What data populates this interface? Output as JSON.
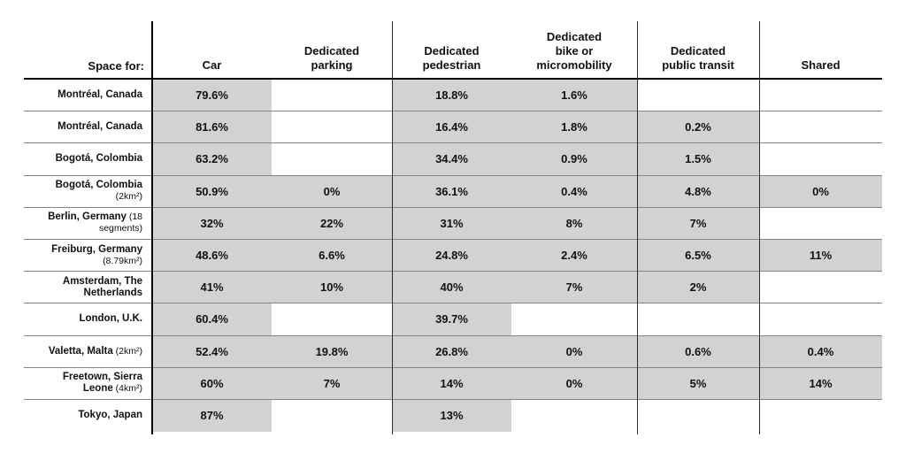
{
  "table": {
    "corner_label": "Space for:",
    "columns": [
      "Car",
      "Dedicated\nparking",
      "Dedicated\npedestrian",
      "Dedicated\nbike or\nmicromobility",
      "Dedicated\npublic transit",
      "Shared"
    ],
    "rows": [
      {
        "name": "Montréal, Canada",
        "note": "",
        "values": [
          "79.6%",
          "",
          "18.8%",
          "1.6%",
          "",
          ""
        ]
      },
      {
        "name": "Montréal, Canada",
        "note": "",
        "values": [
          "81.6%",
          "",
          "16.4%",
          "1.8%",
          "0.2%",
          ""
        ]
      },
      {
        "name": "Bogotá, Colombia",
        "note": "",
        "values": [
          "63.2%",
          "",
          "34.4%",
          "0.9%",
          "1.5%",
          ""
        ]
      },
      {
        "name": "Bogotá, Colombia",
        "note": "(2km²)",
        "values": [
          "50.9%",
          "0%",
          "36.1%",
          "0.4%",
          "4.8%",
          "0%"
        ]
      },
      {
        "name": "Berlin, Germany",
        "note": "(18 segments)",
        "values": [
          "32%",
          "22%",
          "31%",
          "8%",
          "7%",
          ""
        ]
      },
      {
        "name": "Freiburg, Germany",
        "note": "(8.79km²)",
        "values": [
          "48.6%",
          "6.6%",
          "24.8%",
          "2.4%",
          "6.5%",
          "11%"
        ]
      },
      {
        "name": "Amsterdam, The Netherlands",
        "note": "",
        "values": [
          "41%",
          "10%",
          "40%",
          "7%",
          "2%",
          ""
        ]
      },
      {
        "name": "London, U.K.",
        "note": "",
        "values": [
          "60.4%",
          "",
          "39.7%",
          "",
          "",
          ""
        ]
      },
      {
        "name": "Valetta, Malta",
        "note": "(2km²)",
        "values": [
          "52.4%",
          "19.8%",
          "26.8%",
          "0%",
          "0.6%",
          "0.4%"
        ]
      },
      {
        "name": "Freetown, Sierra Leone",
        "note": "(4km²)",
        "values": [
          "60%",
          "7%",
          "14%",
          "0%",
          "5%",
          "14%"
        ]
      },
      {
        "name": "Tokyo, Japan",
        "note": "",
        "values": [
          "87%",
          "",
          "13%",
          "",
          "",
          ""
        ]
      }
    ]
  },
  "colors": {
    "cell_fill": "#d2d2d2",
    "row_rule": "#848484",
    "header_rule": "#000000"
  }
}
